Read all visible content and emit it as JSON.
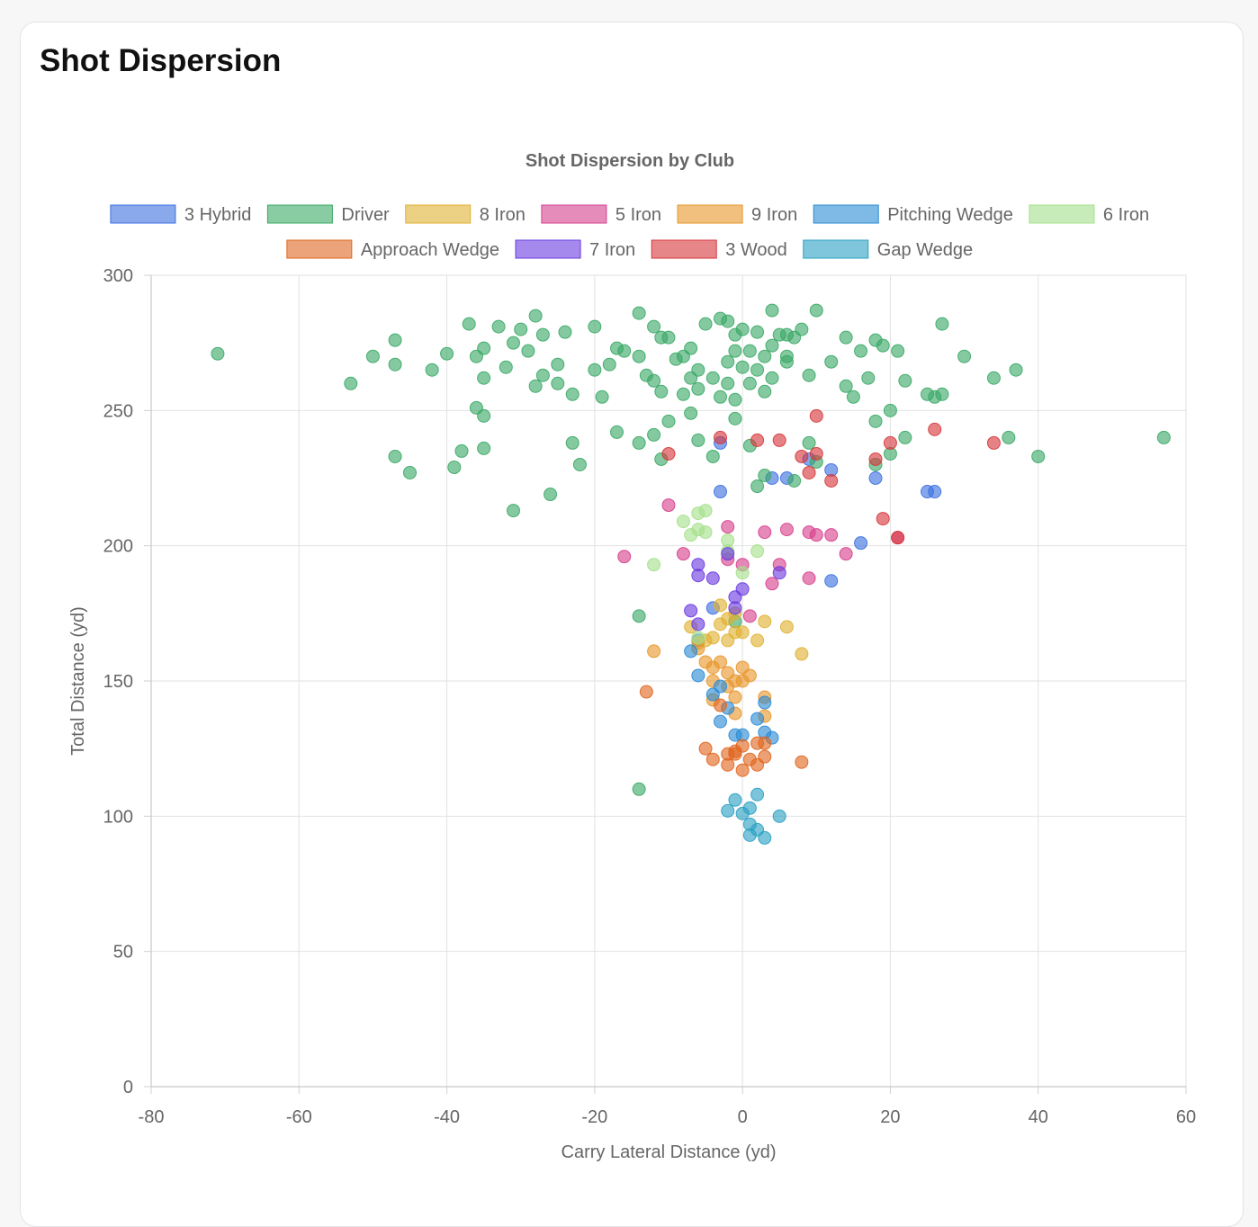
{
  "card": {
    "title": "Shot Dispersion"
  },
  "chart_data": {
    "type": "scatter",
    "title": "Shot Dispersion by Club",
    "xlabel": "Carry Lateral Distance (yd)",
    "ylabel": "Total Distance (yd)",
    "xlim": [
      -80,
      60
    ],
    "ylim": [
      0,
      300
    ],
    "xticks": [
      "-80",
      "-60",
      "-40",
      "-20",
      "0",
      "20",
      "40",
      "60"
    ],
    "yticks": [
      "0",
      "50",
      "100",
      "150",
      "200",
      "250",
      "300"
    ],
    "grid": true,
    "legend_position": "top",
    "series": [
      {
        "name": "3 Hybrid",
        "color": "#3b6fe0",
        "points": [
          [
            -3,
            238
          ],
          [
            -3,
            220
          ],
          [
            4,
            225
          ],
          [
            6,
            225
          ],
          [
            9,
            232
          ],
          [
            12,
            228
          ],
          [
            16,
            201
          ],
          [
            18,
            225
          ],
          [
            25,
            220
          ],
          [
            26,
            220
          ],
          [
            12,
            187
          ],
          [
            -4,
            177
          ],
          [
            -6,
            165
          ]
        ]
      },
      {
        "name": "Driver",
        "color": "#3aa866",
        "points": [
          [
            -71,
            271
          ],
          [
            -53,
            260
          ],
          [
            -50,
            270
          ],
          [
            -47,
            276
          ],
          [
            -47,
            267
          ],
          [
            -42,
            265
          ],
          [
            -40,
            271
          ],
          [
            -37,
            282
          ],
          [
            -36,
            270
          ],
          [
            -35,
            273
          ],
          [
            -35,
            262
          ],
          [
            -33,
            281
          ],
          [
            -32,
            266
          ],
          [
            -31,
            275
          ],
          [
            -30,
            280
          ],
          [
            -29,
            272
          ],
          [
            -28,
            285
          ],
          [
            -27,
            278
          ],
          [
            -27,
            263
          ],
          [
            -28,
            259
          ],
          [
            -25,
            267
          ],
          [
            -25,
            260
          ],
          [
            -24,
            279
          ],
          [
            -23,
            256
          ],
          [
            -20,
            265
          ],
          [
            -20,
            281
          ],
          [
            -19,
            255
          ],
          [
            -18,
            267
          ],
          [
            -17,
            273
          ],
          [
            -16,
            272
          ],
          [
            -14,
            270
          ],
          [
            -13,
            263
          ],
          [
            -14,
            286
          ],
          [
            -12,
            281
          ],
          [
            -12,
            261
          ],
          [
            -11,
            277
          ],
          [
            -11,
            257
          ],
          [
            -10,
            277
          ],
          [
            -9,
            269
          ],
          [
            -8,
            270
          ],
          [
            -8,
            256
          ],
          [
            -7,
            273
          ],
          [
            -7,
            262
          ],
          [
            -6,
            265
          ],
          [
            -6,
            258
          ],
          [
            -5,
            282
          ],
          [
            -4,
            262
          ],
          [
            -3,
            284
          ],
          [
            -3,
            255
          ],
          [
            -2,
            283
          ],
          [
            -2,
            268
          ],
          [
            -2,
            260
          ],
          [
            -1,
            278
          ],
          [
            -1,
            247
          ],
          [
            0,
            280
          ],
          [
            0,
            266
          ],
          [
            -1,
            272
          ],
          [
            1,
            272
          ],
          [
            1,
            260
          ],
          [
            2,
            279
          ],
          [
            2,
            265
          ],
          [
            3,
            257
          ],
          [
            3,
            270
          ],
          [
            4,
            274
          ],
          [
            4,
            287
          ],
          [
            4,
            262
          ],
          [
            5,
            278
          ],
          [
            6,
            278
          ],
          [
            6,
            270
          ],
          [
            6,
            268
          ],
          [
            7,
            277
          ],
          [
            8,
            280
          ],
          [
            9,
            263
          ],
          [
            10,
            287
          ],
          [
            12,
            268
          ],
          [
            14,
            277
          ],
          [
            14,
            259
          ],
          [
            15,
            255
          ],
          [
            16,
            272
          ],
          [
            17,
            262
          ],
          [
            18,
            276
          ],
          [
            19,
            274
          ],
          [
            20,
            250
          ],
          [
            21,
            272
          ],
          [
            22,
            261
          ],
          [
            25,
            256
          ],
          [
            26,
            255
          ],
          [
            27,
            256
          ],
          [
            27,
            282
          ],
          [
            30,
            270
          ],
          [
            34,
            262
          ],
          [
            37,
            265
          ],
          [
            -47,
            233
          ],
          [
            -45,
            227
          ],
          [
            -39,
            229
          ],
          [
            -38,
            235
          ],
          [
            -35,
            236
          ],
          [
            -35,
            248
          ],
          [
            -36,
            251
          ],
          [
            -31,
            213
          ],
          [
            -26,
            219
          ],
          [
            -23,
            238
          ],
          [
            -22,
            230
          ],
          [
            -17,
            242
          ],
          [
            -14,
            238
          ],
          [
            -12,
            241
          ],
          [
            -11,
            232
          ],
          [
            -10,
            246
          ],
          [
            -7,
            249
          ],
          [
            -6,
            239
          ],
          [
            -4,
            233
          ],
          [
            1,
            237
          ],
          [
            3,
            226
          ],
          [
            2,
            222
          ],
          [
            7,
            224
          ],
          [
            9,
            238
          ],
          [
            10,
            231
          ],
          [
            18,
            230
          ],
          [
            18,
            246
          ],
          [
            20,
            234
          ],
          [
            22,
            240
          ],
          [
            36,
            240
          ],
          [
            40,
            233
          ],
          [
            57,
            240
          ],
          [
            -14,
            174
          ],
          [
            -14,
            110
          ],
          [
            -1,
            172
          ],
          [
            -1,
            254
          ]
        ]
      },
      {
        "name": "8 Iron",
        "color": "#e0b030",
        "points": [
          [
            -7,
            170
          ],
          [
            -6,
            164
          ],
          [
            -5,
            165
          ],
          [
            -4,
            166
          ],
          [
            -3,
            178
          ],
          [
            -3,
            171
          ],
          [
            -2,
            173
          ],
          [
            -2,
            165
          ],
          [
            -1,
            175
          ],
          [
            0,
            168
          ],
          [
            2,
            165
          ],
          [
            3,
            172
          ],
          [
            6,
            170
          ],
          [
            8,
            160
          ],
          [
            -1,
            168
          ]
        ]
      },
      {
        "name": "5 Iron",
        "color": "#d63f8c",
        "points": [
          [
            -10,
            215
          ],
          [
            -8,
            197
          ],
          [
            -2,
            207
          ],
          [
            -2,
            195
          ],
          [
            0,
            193
          ],
          [
            3,
            205
          ],
          [
            4,
            186
          ],
          [
            5,
            193
          ],
          [
            6,
            206
          ],
          [
            9,
            205
          ],
          [
            10,
            204
          ],
          [
            12,
            204
          ],
          [
            14,
            197
          ],
          [
            21,
            203
          ],
          [
            -16,
            196
          ],
          [
            9,
            188
          ],
          [
            1,
            174
          ]
        ]
      },
      {
        "name": "9 Iron",
        "color": "#e8962a",
        "points": [
          [
            -12,
            161
          ],
          [
            -6,
            162
          ],
          [
            -5,
            157
          ],
          [
            -4,
            155
          ],
          [
            -4,
            150
          ],
          [
            -3,
            157
          ],
          [
            -2,
            153
          ],
          [
            -2,
            148
          ],
          [
            -1,
            150
          ],
          [
            0,
            155
          ],
          [
            1,
            152
          ],
          [
            0,
            150
          ],
          [
            3,
            144
          ],
          [
            -1,
            144
          ],
          [
            -4,
            143
          ],
          [
            -1,
            138
          ],
          [
            3,
            137
          ]
        ]
      },
      {
        "name": "Pitching Wedge",
        "color": "#2a8ad4",
        "points": [
          [
            -6,
            152
          ],
          [
            -4,
            145
          ],
          [
            -3,
            148
          ],
          [
            -2,
            140
          ],
          [
            -3,
            135
          ],
          [
            -1,
            130
          ],
          [
            0,
            130
          ],
          [
            2,
            136
          ],
          [
            3,
            142
          ],
          [
            3,
            131
          ],
          [
            4,
            129
          ],
          [
            -7,
            161
          ]
        ]
      },
      {
        "name": "6 Iron",
        "color": "#a4e08a",
        "points": [
          [
            -8,
            209
          ],
          [
            -6,
            212
          ],
          [
            -6,
            206
          ],
          [
            -5,
            205
          ],
          [
            -7,
            204
          ],
          [
            -2,
            202
          ],
          [
            -2,
            198
          ],
          [
            0,
            190
          ],
          [
            2,
            198
          ],
          [
            -12,
            193
          ],
          [
            -6,
            166
          ],
          [
            -5,
            213
          ]
        ]
      },
      {
        "name": "Approach Wedge",
        "color": "#e0651f",
        "points": [
          [
            -13,
            146
          ],
          [
            -5,
            125
          ],
          [
            -4,
            121
          ],
          [
            -2,
            123
          ],
          [
            -2,
            119
          ],
          [
            -1,
            124
          ],
          [
            0,
            126
          ],
          [
            0,
            117
          ],
          [
            1,
            121
          ],
          [
            2,
            127
          ],
          [
            2,
            119
          ],
          [
            3,
            127
          ],
          [
            3,
            122
          ],
          [
            8,
            120
          ],
          [
            -3,
            141
          ],
          [
            -1,
            123
          ]
        ]
      },
      {
        "name": "7 Iron",
        "color": "#6a3ae0",
        "points": [
          [
            -7,
            176
          ],
          [
            -6,
            171
          ],
          [
            -6,
            189
          ],
          [
            -6,
            193
          ],
          [
            -4,
            188
          ],
          [
            -1,
            181
          ],
          [
            0,
            184
          ],
          [
            -1,
            177
          ],
          [
            5,
            190
          ],
          [
            -2,
            197
          ]
        ]
      },
      {
        "name": "3 Wood",
        "color": "#d6363a",
        "points": [
          [
            -10,
            234
          ],
          [
            -3,
            240
          ],
          [
            2,
            239
          ],
          [
            5,
            239
          ],
          [
            8,
            233
          ],
          [
            10,
            248
          ],
          [
            9,
            227
          ],
          [
            10,
            234
          ],
          [
            12,
            224
          ],
          [
            18,
            232
          ],
          [
            19,
            210
          ],
          [
            20,
            238
          ],
          [
            26,
            243
          ],
          [
            34,
            238
          ],
          [
            21,
            203
          ]
        ]
      },
      {
        "name": "Gap Wedge",
        "color": "#2aa0c4",
        "points": [
          [
            -1,
            106
          ],
          [
            0,
            101
          ],
          [
            1,
            103
          ],
          [
            2,
            108
          ],
          [
            1,
            97
          ],
          [
            2,
            95
          ],
          [
            3,
            92
          ],
          [
            5,
            100
          ],
          [
            -2,
            102
          ],
          [
            1,
            93
          ]
        ]
      }
    ]
  }
}
